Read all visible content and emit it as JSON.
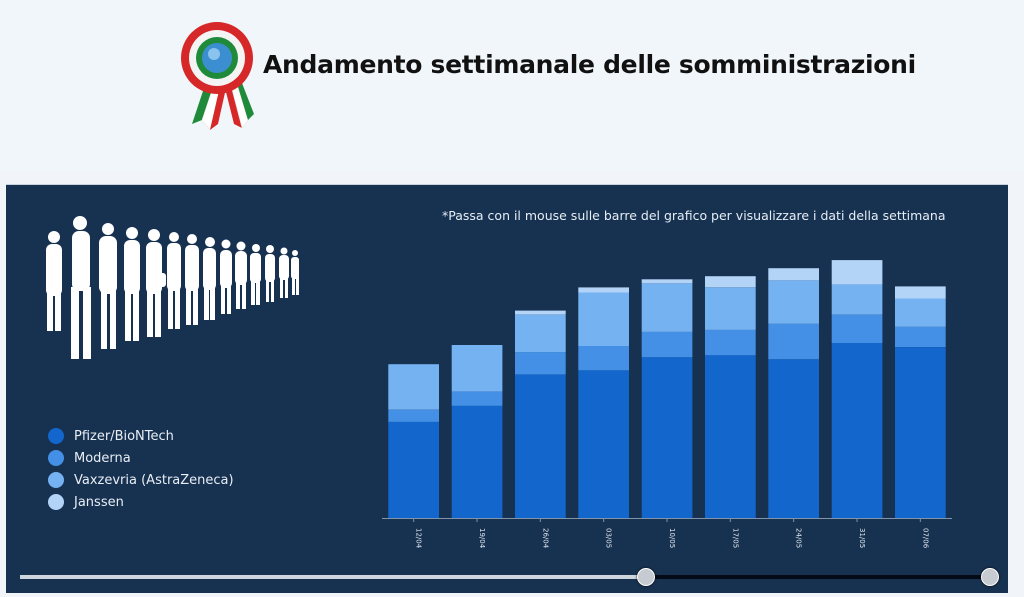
{
  "header": {
    "title": "Andamento settimanale delle somministrazioni"
  },
  "panel": {
    "hint": "*Passa con il mouse sulle barre del grafico per visualizzare i dati della settimana"
  },
  "legend": {
    "items": [
      {
        "label": "Pfizer/BioNTech",
        "color": "#1366cc"
      },
      {
        "label": "Moderna",
        "color": "#4390e6"
      },
      {
        "label": "Vaxzevria (AstraZeneca)",
        "color": "#75b2f2"
      },
      {
        "label": "Janssen",
        "color": "#b3d3f7"
      }
    ]
  },
  "slider": {
    "range_start": 0.64,
    "range_end": 1.0
  },
  "chart_data": {
    "type": "bar",
    "stacked": true,
    "categories": [
      "12/04",
      "19/04",
      "26/04",
      "03/05",
      "10/05",
      "17/05",
      "24/05",
      "31/05",
      "07/06"
    ],
    "series": [
      {
        "name": "Pfizer/BioNTech",
        "color": "#1366cc",
        "values": [
          95,
          111,
          142,
          146,
          159,
          161,
          157,
          173,
          169
        ]
      },
      {
        "name": "Moderna",
        "color": "#4390e6",
        "values": [
          12,
          14,
          22,
          24,
          25,
          25,
          35,
          28,
          20
        ]
      },
      {
        "name": "Vaxzevria (AstraZeneca)",
        "color": "#75b2f2",
        "values": [
          45,
          46,
          37,
          53,
          48,
          42,
          43,
          30,
          28
        ]
      },
      {
        "name": "Janssen",
        "color": "#b3d3f7",
        "values": [
          0,
          0,
          4,
          5,
          4,
          11,
          12,
          24,
          12
        ]
      }
    ],
    "ylim": [
      0,
      260
    ],
    "grid": false
  }
}
